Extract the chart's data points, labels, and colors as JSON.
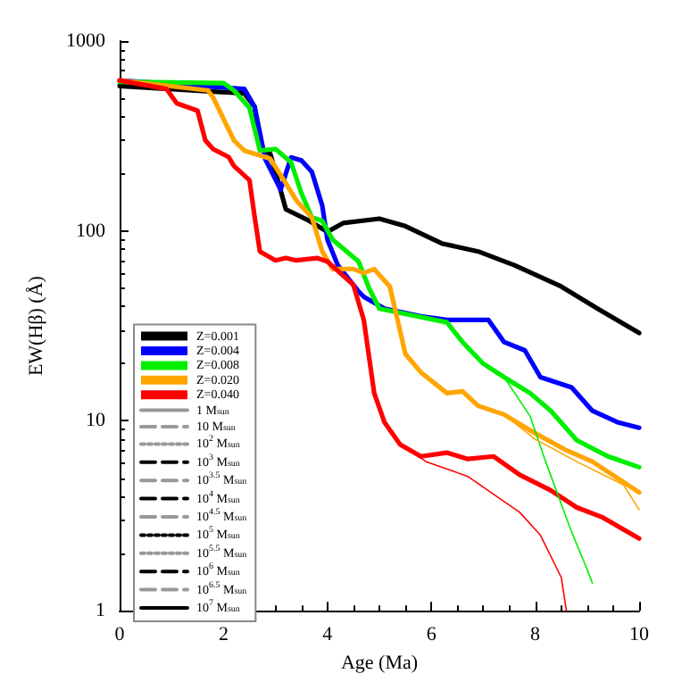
{
  "chart_data": {
    "type": "line",
    "xlabel": "Age (Ma)",
    "ylabel": "EW(Hβ) (Å)",
    "xlim": [
      0,
      10
    ],
    "xticks": [
      0,
      2,
      4,
      6,
      8,
      10
    ],
    "ylim": [
      1,
      1000
    ],
    "yticks": [
      1,
      10,
      100,
      1000
    ],
    "log": "y",
    "grid": false,
    "legend": "bottom left",
    "marker": "none",
    "series": [
      {
        "name": "Z=0.001",
        "color": "#000000",
        "x": [
          0,
          2.4,
          2.6,
          2.7,
          2.9,
          3.0,
          3.2,
          3.6,
          4.0,
          4.3,
          5.0,
          5.5,
          6.2,
          6.9,
          7.6,
          8.5,
          9.2,
          10
        ],
        "values": [
          580,
          530,
          450,
          270,
          255,
          205,
          130,
          115,
          99,
          110,
          116,
          106,
          86,
          78,
          66,
          51,
          39,
          29
        ]
      },
      {
        "name": "Z=0.004",
        "color": "#0000ff",
        "x": [
          0,
          2.4,
          2.6,
          2.8,
          3.1,
          3.3,
          3.5,
          3.7,
          3.9,
          4.0,
          4.2,
          4.6,
          4.7,
          5.1,
          5.8,
          6.3,
          7.1,
          7.4,
          7.8,
          8.1,
          8.7,
          9.1,
          9.6,
          10
        ],
        "values": [
          620,
          560,
          450,
          240,
          165,
          244,
          235,
          205,
          136,
          90,
          66,
          48,
          45,
          39,
          35.5,
          34,
          34,
          26,
          23.5,
          17,
          15,
          11.3,
          9.8,
          9.2
        ]
      },
      {
        "name": "Z=0.008",
        "color": "#00ee00",
        "x": [
          0,
          2.0,
          2.2,
          2.5,
          2.7,
          3.0,
          3.3,
          3.5,
          3.7,
          3.9,
          4.1,
          4.6,
          4.8,
          5.0,
          6.3,
          6.6,
          7.0,
          7.4,
          7.9,
          8.3,
          8.8,
          9.4,
          10
        ],
        "values": [
          610,
          600,
          550,
          445,
          265,
          270,
          230,
          158,
          118,
          113,
          90,
          69,
          50,
          39,
          33,
          26,
          20,
          17,
          14,
          11.3,
          7.9,
          6.5,
          5.7
        ]
      },
      {
        "name": "Z=0.020",
        "color": "#ffa500",
        "x": [
          0,
          1.7,
          1.8,
          2.2,
          2.4,
          2.9,
          3.2,
          3.4,
          3.7,
          3.9,
          4.1,
          4.5,
          4.7,
          4.9,
          5.2,
          5.3,
          5.5,
          5.8,
          6.3,
          6.6,
          6.9,
          7.4,
          8.0,
          8.6,
          9.1,
          10
        ],
        "values": [
          620,
          550,
          505,
          300,
          265,
          240,
          178,
          145,
          118,
          78,
          63,
          63,
          60,
          63,
          51,
          39,
          22.5,
          18,
          14,
          14.3,
          12,
          10.8,
          8.6,
          7,
          6.1,
          4.2
        ]
      },
      {
        "name": "Z=0.040",
        "color": "#ff0000",
        "x": [
          0,
          0.9,
          1.1,
          1.5,
          1.65,
          1.8,
          2.1,
          2.2,
          2.5,
          2.6,
          2.7,
          3.0,
          3.2,
          3.4,
          3.8,
          4.0,
          4.5,
          4.7,
          4.9,
          5.1,
          5.4,
          5.8,
          6.3,
          6.7,
          7.2,
          7.7,
          8.3,
          8.8,
          9.3,
          10
        ],
        "values": [
          620,
          560,
          470,
          430,
          300,
          270,
          245,
          220,
          185,
          118,
          78,
          70,
          72,
          70,
          72,
          69,
          52,
          34,
          14,
          9.8,
          7.5,
          6.5,
          6.8,
          6.3,
          6.5,
          5.2,
          4.3,
          3.5,
          3.1,
          2.4
        ]
      },
      {
        "color": "#ff0000",
        "x": [
          5.4,
          5.9,
          6.7,
          7.7,
          8.1,
          8.5,
          8.6
        ],
        "values": [
          7.5,
          6.1,
          5.1,
          3.3,
          2.5,
          1.5,
          1
        ]
      },
      {
        "color": "#00ee00",
        "x": [
          7.4,
          7.9,
          8.2,
          8.7,
          9.0,
          9.1
        ],
        "values": [
          17,
          10.6,
          6.1,
          2.6,
          1.65,
          1.4
        ]
      },
      {
        "color": "#ffa500",
        "x": [
          7.4,
          8.0,
          8.8,
          9.7,
          10
        ],
        "values": [
          10.8,
          8,
          6.1,
          4.6,
          3.4
        ]
      },
      {
        "name": "1 M$_{sun}$",
        "color": "#999999",
        "line_style": "solid"
      },
      {
        "name": "10 M$_{sun}$",
        "color": "#999999",
        "line_style": "dashed"
      },
      {
        "name": "10$^{2}$ M$_{sun}$",
        "color": "#999999",
        "line_style": "dotted"
      },
      {
        "name": "10$^{3}$ M$_{sun}$",
        "color": "#000000",
        "line_style": "dashed"
      },
      {
        "name": "10$^{3.5}$ M$_{sun}$",
        "color": "#999999",
        "line_style": "dashed"
      },
      {
        "name": "10$^{4}$ M$_{sun}$",
        "color": "#000000",
        "line_style": "dashed"
      },
      {
        "name": "10$^{4.5}$ M$_{sun}$",
        "color": "#999999",
        "line_style": "dashed"
      },
      {
        "name": "10$^{5}$ M$_{sun}$",
        "color": "#000000",
        "line_style": "dotted"
      },
      {
        "name": "10$^{5.5}$ M$_{sun}$",
        "color": "#999999",
        "line_style": "dotted"
      },
      {
        "name": "10$^{6}$ M$_{sun}$",
        "color": "#000000",
        "line_style": "dashed"
      },
      {
        "name": "10$^{6.5}$ M$_{sun}$",
        "color": "#999999",
        "line_style": "dashed"
      },
      {
        "name": "10$^{7}$ M$_{sun}$",
        "color": "#000000",
        "line_style": "solid"
      }
    ]
  }
}
